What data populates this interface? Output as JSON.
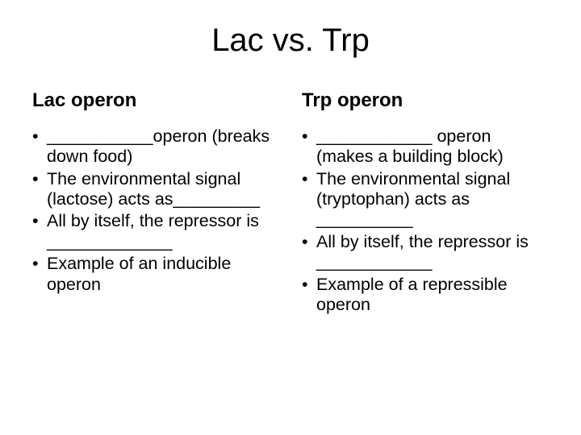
{
  "title": "Lac vs. Trp",
  "left": {
    "heading": "Lac operon",
    "items": [
      "___________operon (breaks down food)",
      "The environmental signal (lactose) acts as_________",
      "All by itself, the repressor is _____________",
      "Example of an inducible operon"
    ]
  },
  "right": {
    "heading": "Trp operon",
    "items": [
      "____________ operon (makes a building block)",
      "The environmental signal (tryptophan) acts as __________",
      "All by itself, the repressor is ____________",
      "Example of a repressible operon"
    ]
  },
  "style": {
    "background_color": "#ffffff",
    "text_color": "#000000",
    "title_fontsize": 40,
    "heading_fontsize": 24,
    "body_fontsize": 21.5,
    "font_family": "Arial"
  }
}
